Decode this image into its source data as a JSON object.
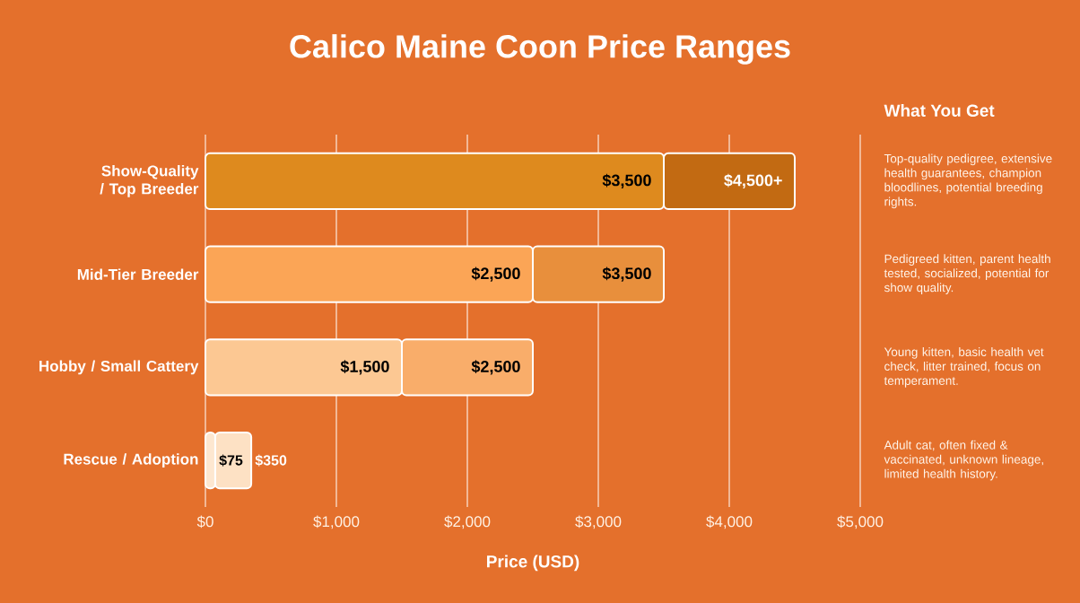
{
  "chart_data": {
    "type": "bar",
    "orientation": "horizontal",
    "stacked": true,
    "title": "Calico Maine Coon Price Ranges",
    "xlabel": "Price (USD)",
    "categories": [
      "Show-Quality / Top Breeder",
      "Mid-Tier Breeder",
      "Hobby / Small Cattery",
      "Rescue / Adoption"
    ],
    "series": [
      {
        "colors": [
          "#de8a1e",
          "#fba556",
          "#fcc893",
          "#fde7d0"
        ],
        "values": [
          3500,
          2500,
          1500,
          75
        ]
      },
      {
        "colors": [
          "#c26a12",
          "#e88f3c",
          "#f9ad6a",
          "#fde1c4"
        ],
        "values": [
          1000,
          1000,
          1000,
          275
        ]
      }
    ],
    "xlim": [
      0,
      5000
    ],
    "xticks": [
      {
        "value": 0,
        "label": "$0"
      },
      {
        "value": 1000,
        "label": "$1,000"
      },
      {
        "value": 2000,
        "label": "$2,000"
      },
      {
        "value": 3000,
        "label": "$3,000"
      },
      {
        "value": 4000,
        "label": "$4,000"
      },
      {
        "value": 5000,
        "label": "$5,000"
      }
    ],
    "grid": "x",
    "annotations": [
      "What You Get",
      "Top-quality pedigree, extensive health guarantees, champion bloodlines, potential breeding rights.",
      "Pedigreed kitten, parent health tested, socialized, potential for show quality.",
      "Young kitten, basic health vet check, litter trained, focus on temperament.",
      "Adult cat, often fixed & vaccinated, unknown lineage, limited health history.",
      {
        "text": "$3,500",
        "x": 3500,
        "y": "Show-Quality / Top Breeder"
      },
      {
        "text": "$4,500+",
        "x": 4500,
        "y": "Show-Quality / Top Breeder"
      },
      {
        "text": "$2,500",
        "x": 2500,
        "y": "Mid-Tier Breeder"
      },
      {
        "text": "$3,500",
        "x": 3500,
        "y": "Mid-Tier Breeder"
      },
      {
        "text": "$1,500",
        "x": 1500,
        "y": "Hobby / Small Cattery"
      },
      {
        "text": "$2,500",
        "x": 2500,
        "y": "Hobby / Small Cattery"
      },
      {
        "text": "$75",
        "x": 75,
        "y": "Rescue / Adoption"
      },
      {
        "text": "$350",
        "x": 350,
        "y": "Rescue / Adoption"
      }
    ]
  }
}
